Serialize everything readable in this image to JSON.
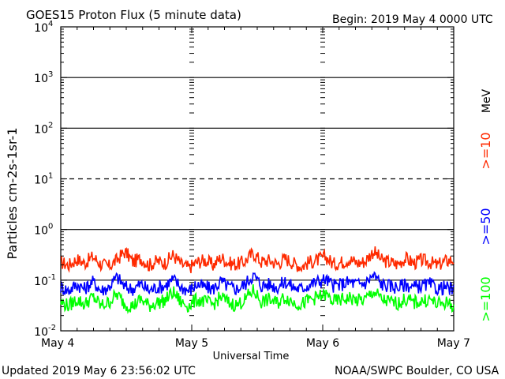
{
  "header": {
    "title": "GOES15 Proton Flux (5 minute data)",
    "begin": "Begin: 2019 May 4 0000 UTC"
  },
  "footer": {
    "updated": "Updated 2019 May  6 23:56:02 UTC",
    "credit": "NOAA/SWPC Boulder, CO USA"
  },
  "colors": {
    "ge10": "#ff2a00",
    "ge50": "#0000ff",
    "ge100": "#00ff00",
    "axis": "#000000"
  },
  "chart_data": {
    "type": "line",
    "title": "GOES15 Proton Flux (5 minute data)",
    "ylabel": "Particles cm-2s-1sr-1",
    "xlabel": "Universal Time",
    "yscale": "log",
    "ylim": [
      0.01,
      10000
    ],
    "y_ticks": [
      {
        "base": "10",
        "exp": "4"
      },
      {
        "base": "10",
        "exp": "3"
      },
      {
        "base": "10",
        "exp": "2"
      },
      {
        "base": "10",
        "exp": "1"
      },
      {
        "base": "10",
        "exp": "0"
      },
      {
        "base": "10",
        "exp": "-1"
      },
      {
        "base": "10",
        "exp": "-2"
      }
    ],
    "x_tick_labels": [
      "May 4",
      "May 5",
      "May 6",
      "May 7"
    ],
    "threshold_lines": [
      1000,
      100,
      10,
      1,
      0.1
    ],
    "legend_unit": "MeV",
    "series": [
      {
        "name": ">=10",
        "color": "#ff2a00",
        "values": [
          0.22,
          0.19,
          0.25,
          0.21,
          0.28,
          0.2,
          0.18,
          0.24,
          0.35,
          0.22,
          0.26,
          0.19,
          0.23,
          0.21,
          0.3,
          0.2,
          0.17,
          0.22,
          0.24,
          0.19,
          0.27,
          0.21,
          0.2,
          0.23,
          0.33,
          0.22,
          0.24,
          0.2,
          0.26,
          0.21,
          0.18,
          0.22,
          0.24,
          0.28,
          0.2,
          0.22,
          0.25,
          0.21,
          0.23,
          0.36,
          0.24,
          0.22,
          0.2,
          0.26,
          0.21,
          0.24,
          0.22,
          0.19,
          0.23,
          0.25
        ]
      },
      {
        "name": ">=50",
        "color": "#0000ff",
        "values": [
          0.07,
          0.06,
          0.08,
          0.065,
          0.09,
          0.06,
          0.07,
          0.11,
          0.07,
          0.065,
          0.08,
          0.06,
          0.07,
          0.075,
          0.1,
          0.07,
          0.06,
          0.08,
          0.07,
          0.065,
          0.09,
          0.07,
          0.065,
          0.08,
          0.12,
          0.075,
          0.08,
          0.07,
          0.09,
          0.07,
          0.065,
          0.08,
          0.09,
          0.1,
          0.075,
          0.08,
          0.09,
          0.08,
          0.085,
          0.12,
          0.08,
          0.075,
          0.07,
          0.08,
          0.07,
          0.075,
          0.08,
          0.065,
          0.07,
          0.06
        ]
      },
      {
        "name": ">=100",
        "color": "#00ff00",
        "values": [
          0.035,
          0.03,
          0.04,
          0.032,
          0.045,
          0.03,
          0.035,
          0.05,
          0.032,
          0.03,
          0.04,
          0.03,
          0.035,
          0.038,
          0.055,
          0.035,
          0.03,
          0.04,
          0.036,
          0.032,
          0.045,
          0.034,
          0.031,
          0.04,
          0.06,
          0.036,
          0.04,
          0.034,
          0.045,
          0.035,
          0.032,
          0.04,
          0.044,
          0.05,
          0.036,
          0.04,
          0.043,
          0.038,
          0.04,
          0.058,
          0.04,
          0.036,
          0.034,
          0.04,
          0.035,
          0.037,
          0.04,
          0.032,
          0.035,
          0.03
        ]
      }
    ]
  }
}
